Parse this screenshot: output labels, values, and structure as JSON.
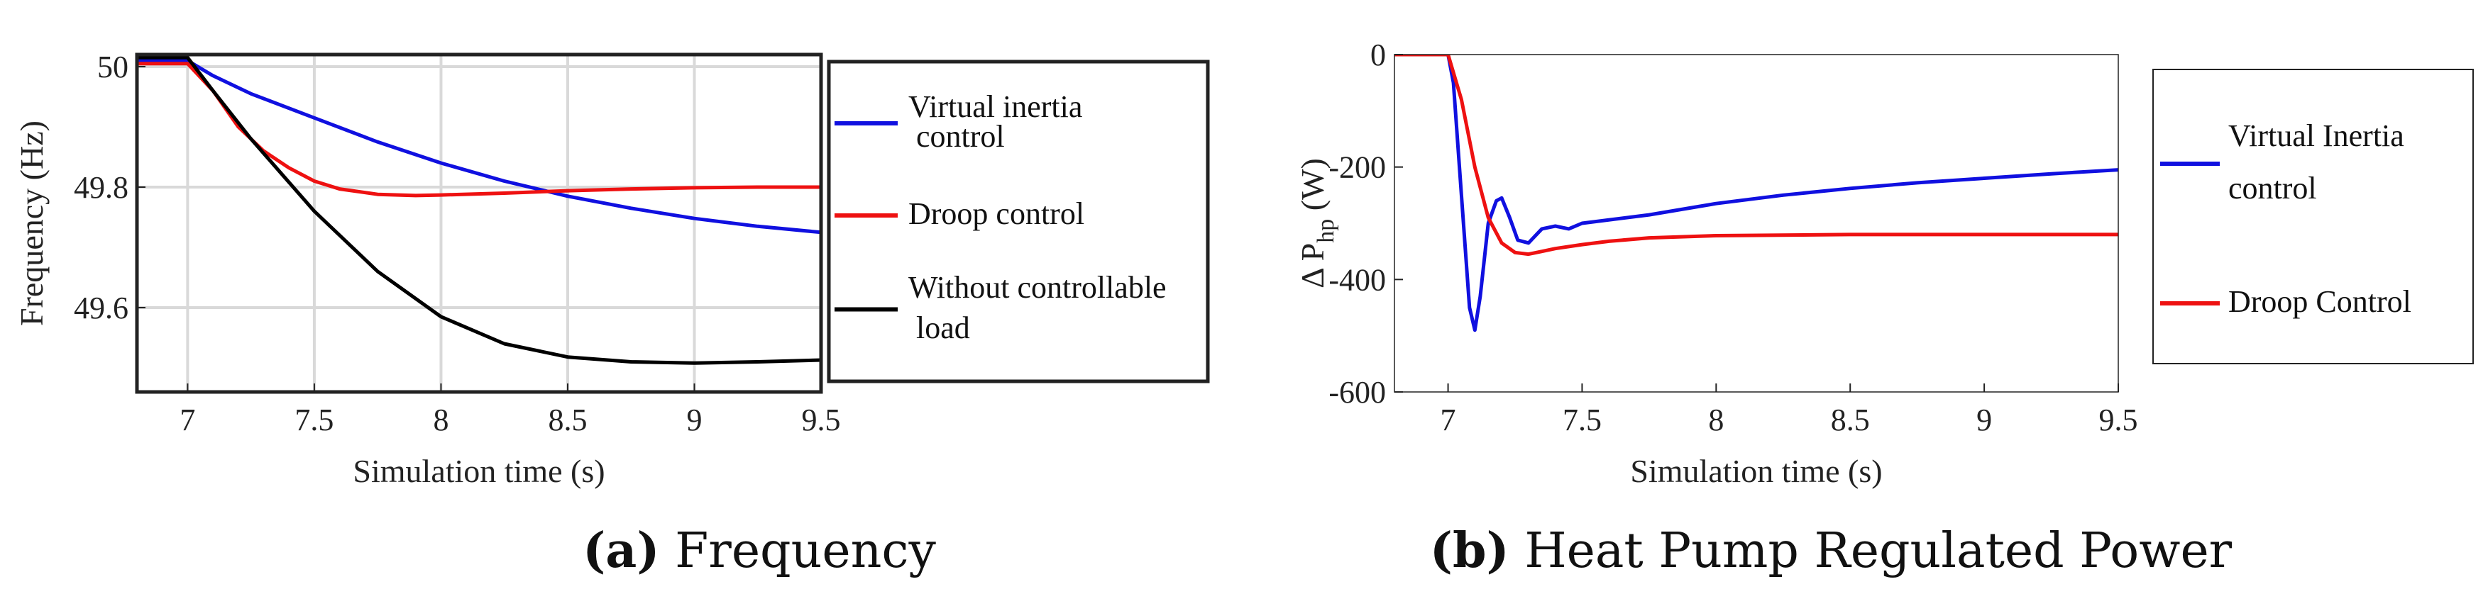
{
  "captions": {
    "a": {
      "tag": "(a)",
      "text": "Frequency"
    },
    "b": {
      "tag": "(b)",
      "text": "Heat Pump Regulated Power"
    }
  },
  "colors": {
    "blue": "#1010e0",
    "red": "#ee1111",
    "black": "#000000",
    "grid": "#d9d9d9"
  },
  "chart_data": [
    {
      "id": "a",
      "type": "line",
      "title": "",
      "xlabel": "Simulation time (s)",
      "ylabel": "Frequency (Hz)",
      "xlim": [
        6.8,
        9.5
      ],
      "ylim": [
        49.46,
        50.02
      ],
      "xticks": [
        7,
        7.5,
        8,
        8.5,
        9,
        9.5
      ],
      "xticklabels": [
        "7",
        "7.5",
        "8",
        "8.5",
        "9",
        "9.5"
      ],
      "yticks": [
        49.6,
        49.8,
        50
      ],
      "yticklabels": [
        "49.6",
        "49.8",
        "50"
      ],
      "grid": true,
      "legend_position": "right-outside",
      "series": [
        {
          "name": "Virtual inertia control",
          "label_lines": [
            "Virtual inertia",
            " control"
          ],
          "color": "#1010e0",
          "x": [
            6.8,
            7.0,
            7.1,
            7.25,
            7.5,
            7.75,
            8.0,
            8.25,
            8.5,
            8.75,
            9.0,
            9.25,
            9.5
          ],
          "y": [
            50.01,
            50.01,
            49.985,
            49.955,
            49.915,
            49.875,
            49.84,
            49.81,
            49.785,
            49.765,
            49.748,
            49.735,
            49.725
          ]
        },
        {
          "name": "Droop control",
          "label_lines": [
            "Droop control"
          ],
          "color": "#ee1111",
          "x": [
            6.8,
            7.0,
            7.1,
            7.2,
            7.3,
            7.4,
            7.5,
            7.6,
            7.75,
            7.9,
            8.0,
            8.25,
            8.5,
            8.75,
            9.0,
            9.25,
            9.5
          ],
          "y": [
            50.005,
            50.005,
            49.96,
            49.9,
            49.86,
            49.832,
            49.81,
            49.797,
            49.788,
            49.786,
            49.787,
            49.79,
            49.794,
            49.797,
            49.799,
            49.8,
            49.8
          ]
        },
        {
          "name": "Without controllable load",
          "label_lines": [
            "Without controllable",
            " load"
          ],
          "color": "#000000",
          "x": [
            6.8,
            7.0,
            7.1,
            7.25,
            7.5,
            7.75,
            8.0,
            8.25,
            8.5,
            8.75,
            9.0,
            9.25,
            9.5
          ],
          "y": [
            50.015,
            50.015,
            49.96,
            49.88,
            49.76,
            49.66,
            49.585,
            49.54,
            49.518,
            49.51,
            49.508,
            49.51,
            49.513
          ]
        }
      ]
    },
    {
      "id": "b",
      "type": "line",
      "title": "",
      "xlabel": "Simulation time (s)",
      "ylabel": "Δ P_hp (W)",
      "ylabel_parts": {
        "main": "Δ P",
        "sub": "hp",
        "unit": " (W)"
      },
      "xlim": [
        6.8,
        9.5
      ],
      "ylim": [
        -600,
        0
      ],
      "xticks": [
        7,
        7.5,
        8,
        8.5,
        9,
        9.5
      ],
      "xticklabels": [
        "7",
        "7.5",
        "8",
        "8.5",
        "9",
        "9.5"
      ],
      "yticks": [
        -600,
        -400,
        -200,
        0
      ],
      "yticklabels": [
        "-600",
        "-400",
        "-200",
        "0"
      ],
      "grid": false,
      "legend_position": "right-outside",
      "series": [
        {
          "name": "Virtual Inertia control",
          "label_lines": [
            "Virtual Inertia",
            "control"
          ],
          "color": "#1010e0",
          "x": [
            6.8,
            7.0,
            7.02,
            7.05,
            7.08,
            7.1,
            7.12,
            7.15,
            7.18,
            7.2,
            7.23,
            7.26,
            7.3,
            7.35,
            7.4,
            7.45,
            7.5,
            7.75,
            8.0,
            8.25,
            8.5,
            8.75,
            9.0,
            9.25,
            9.5
          ],
          "y": [
            0,
            0,
            -50,
            -250,
            -450,
            -490,
            -430,
            -300,
            -260,
            -255,
            -290,
            -330,
            -335,
            -310,
            -305,
            -310,
            -300,
            -285,
            -265,
            -250,
            -238,
            -228,
            -220,
            -212,
            -205
          ]
        },
        {
          "name": "Droop Control",
          "label_lines": [
            "Droop Control"
          ],
          "color": "#ee1111",
          "x": [
            6.8,
            7.0,
            7.05,
            7.1,
            7.15,
            7.2,
            7.25,
            7.3,
            7.35,
            7.4,
            7.5,
            7.6,
            7.75,
            8.0,
            8.5,
            9.0,
            9.5
          ],
          "y": [
            0,
            0,
            -80,
            -200,
            -290,
            -335,
            -352,
            -355,
            -350,
            -345,
            -338,
            -332,
            -326,
            -322,
            -320,
            -320,
            -320
          ]
        }
      ]
    }
  ]
}
